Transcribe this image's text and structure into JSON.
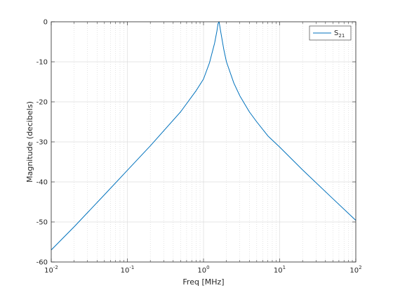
{
  "chart_data": {
    "type": "line",
    "xlabel": "Freq [MHz]",
    "ylabel": "Magnitude (decibels)",
    "x_scale": "log",
    "xlim": [
      0.01,
      100
    ],
    "ylim": [
      -60,
      0
    ],
    "grid": true,
    "legend_position": "top-right",
    "x_ticks": [
      {
        "base": "10",
        "exp": "-2"
      },
      {
        "base": "10",
        "exp": "-1"
      },
      {
        "base": "10",
        "exp": "0"
      },
      {
        "base": "10",
        "exp": "1"
      },
      {
        "base": "10",
        "exp": "2"
      }
    ],
    "y_ticks": [
      "0",
      "-10",
      "-20",
      "-30",
      "-40",
      "-50",
      "-60"
    ],
    "series": [
      {
        "name": "S21",
        "legend_label": {
          "base": "S",
          "sub": "21"
        },
        "color": "#0072BD",
        "x": [
          0.01,
          0.02,
          0.05,
          0.1,
          0.2,
          0.5,
          0.8,
          1.0,
          1.2,
          1.4,
          1.5,
          1.55,
          1.6,
          1.7,
          1.85,
          2.0,
          2.5,
          3.0,
          4.0,
          5.0,
          7.0,
          10.0,
          20.0,
          50.0,
          100.0
        ],
        "y": [
          -57.0,
          -51.2,
          -43.2,
          -37.1,
          -31.0,
          -22.5,
          -17.2,
          -14.3,
          -10.2,
          -5.3,
          -2.3,
          -0.5,
          0.0,
          -3.0,
          -7.0,
          -10.0,
          -15.3,
          -18.5,
          -22.5,
          -25.0,
          -28.5,
          -31.3,
          -37.0,
          -44.2,
          -49.6
        ]
      }
    ]
  }
}
